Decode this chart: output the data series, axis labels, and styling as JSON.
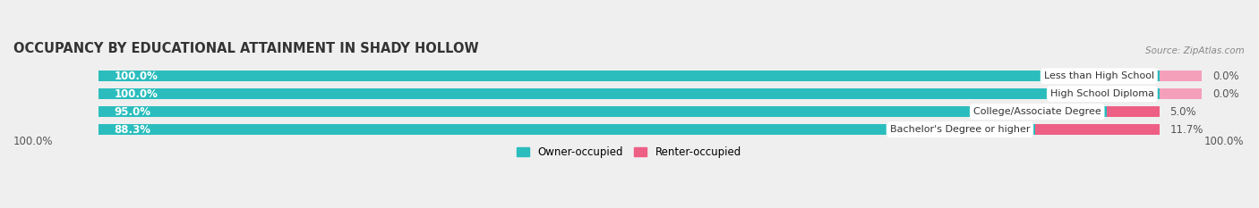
{
  "title": "OCCUPANCY BY EDUCATIONAL ATTAINMENT IN SHADY HOLLOW",
  "source": "Source: ZipAtlas.com",
  "categories": [
    "Less than High School",
    "High School Diploma",
    "College/Associate Degree",
    "Bachelor's Degree or higher"
  ],
  "owner_pct": [
    100.0,
    100.0,
    95.0,
    88.3
  ],
  "renter_pct": [
    0.0,
    0.0,
    5.0,
    11.7
  ],
  "renter_visual_pct": [
    4.0,
    4.0,
    5.0,
    11.7
  ],
  "owner_color": "#2BBDBD",
  "renter_color_strong": "#EE5F85",
  "renter_color_light": "#F4A0BB",
  "bg_color": "#EFEFEF",
  "bar_bg_color": "#DCDCDC",
  "title_fontsize": 10.5,
  "source_fontsize": 7.5,
  "label_fontsize": 8.5,
  "bar_height": 0.62,
  "x_left_label": "100.0%",
  "x_right_label": "100.0%",
  "legend_owner": "Owner-occupied",
  "legend_renter": "Renter-occupied"
}
